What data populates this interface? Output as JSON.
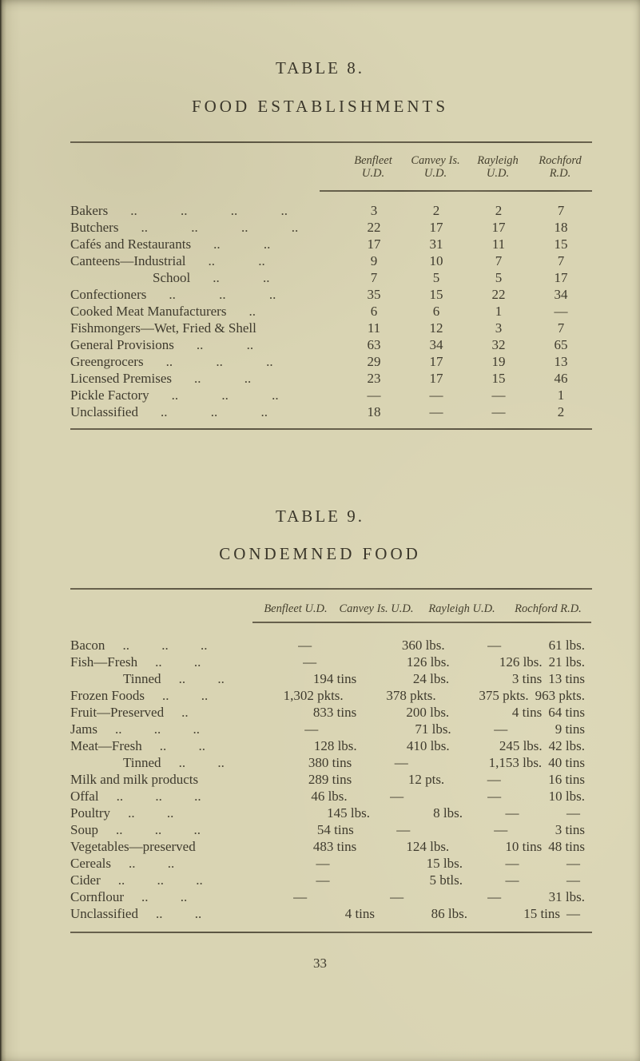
{
  "page": {
    "number": "33"
  },
  "table8": {
    "title": "TABLE 8.",
    "subtitle": "FOOD ESTABLISHMENTS",
    "columns": [
      {
        "line1": "Benfleet",
        "line2": "U.D."
      },
      {
        "line1": "Canvey Is.",
        "line2": "U.D."
      },
      {
        "line1": "Rayleigh",
        "line2": "U.D."
      },
      {
        "line1": "Rochford",
        "line2": "R.D."
      }
    ],
    "rows": [
      {
        "label": "Bakers",
        "dots": ".. .. .. ..",
        "indent": false,
        "values": [
          "3",
          "2",
          "2",
          "7"
        ]
      },
      {
        "label": "Butchers",
        "dots": ".. .. .. ..",
        "indent": false,
        "values": [
          "22",
          "17",
          "17",
          "18"
        ]
      },
      {
        "label": "Cafés and Restaurants",
        "dots": ".. ..",
        "indent": false,
        "values": [
          "17",
          "31",
          "11",
          "15"
        ]
      },
      {
        "label": "Canteens—Industrial",
        "dots": ".. ..",
        "indent": false,
        "values": [
          "9",
          "10",
          "7",
          "7"
        ]
      },
      {
        "label": "School",
        "dots": ".. ..",
        "indent": true,
        "values": [
          "7",
          "5",
          "5",
          "17"
        ]
      },
      {
        "label": "Confectioners",
        "dots": ".. .. ..",
        "indent": false,
        "values": [
          "35",
          "15",
          "22",
          "34"
        ]
      },
      {
        "label": "Cooked Meat Manufacturers",
        "dots": "..",
        "indent": false,
        "values": [
          "6",
          "6",
          "1",
          "—"
        ]
      },
      {
        "label": "Fishmongers—Wet, Fried & Shell",
        "dots": "",
        "indent": false,
        "values": [
          "11",
          "12",
          "3",
          "7"
        ]
      },
      {
        "label": "General Provisions",
        "dots": ".. ..",
        "indent": false,
        "values": [
          "63",
          "34",
          "32",
          "65"
        ]
      },
      {
        "label": "Greengrocers",
        "dots": ".. .. ..",
        "indent": false,
        "values": [
          "29",
          "17",
          "19",
          "13"
        ]
      },
      {
        "label": "Licensed Premises",
        "dots": ".. ..",
        "indent": false,
        "values": [
          "23",
          "17",
          "15",
          "46"
        ]
      },
      {
        "label": "Pickle Factory",
        "dots": ".. .. ..",
        "indent": false,
        "values": [
          "—",
          "—",
          "—",
          "1"
        ]
      },
      {
        "label": "Unclassified",
        "dots": ".. .. ..",
        "indent": false,
        "values": [
          "18",
          "—",
          "—",
          "2"
        ]
      }
    ]
  },
  "table9": {
    "title": "TABLE 9.",
    "subtitle": "CONDEMNED FOOD",
    "columns": [
      "Benfleet U.D.",
      "Canvey Is. U.D.",
      "Rayleigh U.D.",
      "Rochford R.D."
    ],
    "rows": [
      {
        "label": "Bacon",
        "dots": ".. .. ..",
        "indent": false,
        "values": [
          "—",
          "360 lbs.",
          "—",
          "61 lbs."
        ]
      },
      {
        "label": "Fish—Fresh",
        "dots": ".. ..",
        "indent": false,
        "values": [
          "—",
          "126 lbs.",
          "126 lbs.",
          "21 lbs."
        ]
      },
      {
        "label": "Tinned",
        "dots": ".. ..",
        "indent": true,
        "values": [
          "194 tins",
          "24 lbs.",
          "3 tins",
          "13 tins"
        ]
      },
      {
        "label": "Frozen Foods",
        "dots": ".. ..",
        "indent": false,
        "values": [
          "1,302 pkts.",
          "378 pkts.",
          "375 pkts.",
          "963 pkts."
        ]
      },
      {
        "label": "Fruit—Preserved",
        "dots": "..",
        "indent": false,
        "values": [
          "833 tins",
          "200 lbs.",
          "4 tins",
          "64 tins"
        ]
      },
      {
        "label": "Jams",
        "dots": ".. .. ..",
        "indent": false,
        "values": [
          "—",
          "71 lbs.",
          "—",
          "9 tins"
        ]
      },
      {
        "label": "Meat—Fresh",
        "dots": ".. ..",
        "indent": false,
        "values": [
          "128 lbs.",
          "410 lbs.",
          "245 lbs.",
          "42 lbs."
        ]
      },
      {
        "label": "Tinned",
        "dots": ".. ..",
        "indent": true,
        "values": [
          "380 tins",
          "—",
          "1,153 lbs.",
          "40 tins"
        ]
      },
      {
        "label": "Milk and milk products",
        "dots": "",
        "indent": false,
        "values": [
          "289 tins",
          "12 pts.",
          "—",
          "16 tins"
        ]
      },
      {
        "label": "Offal",
        "dots": ".. .. ..",
        "indent": false,
        "values": [
          "46 lbs.",
          "—",
          "—",
          "10 lbs."
        ]
      },
      {
        "label": "Poultry",
        "dots": ".. ..",
        "indent": false,
        "values": [
          "145 lbs.",
          "8 lbs.",
          "—",
          "—"
        ]
      },
      {
        "label": "Soup",
        "dots": ".. .. ..",
        "indent": false,
        "values": [
          "54 tins",
          "—",
          "—",
          "3 tins"
        ]
      },
      {
        "label": "Vegetables—preserved",
        "dots": "",
        "indent": false,
        "values": [
          "483 tins",
          "124 lbs.",
          "10 tins",
          "48 tins"
        ]
      },
      {
        "label": "Cereals",
        "dots": ".. ..",
        "indent": false,
        "values": [
          "—",
          "15 lbs.",
          "—",
          "—"
        ]
      },
      {
        "label": "Cider",
        "dots": ".. .. ..",
        "indent": false,
        "values": [
          "—",
          "5 btls.",
          "—",
          "—"
        ]
      },
      {
        "label": "Cornflour",
        "dots": ".. ..",
        "indent": false,
        "values": [
          "—",
          "—",
          "—",
          "31 lbs."
        ]
      },
      {
        "label": "Unclassified",
        "dots": ".. ..",
        "indent": false,
        "values": [
          "4 tins",
          "86 lbs.",
          "15 tins",
          "—"
        ]
      }
    ]
  }
}
